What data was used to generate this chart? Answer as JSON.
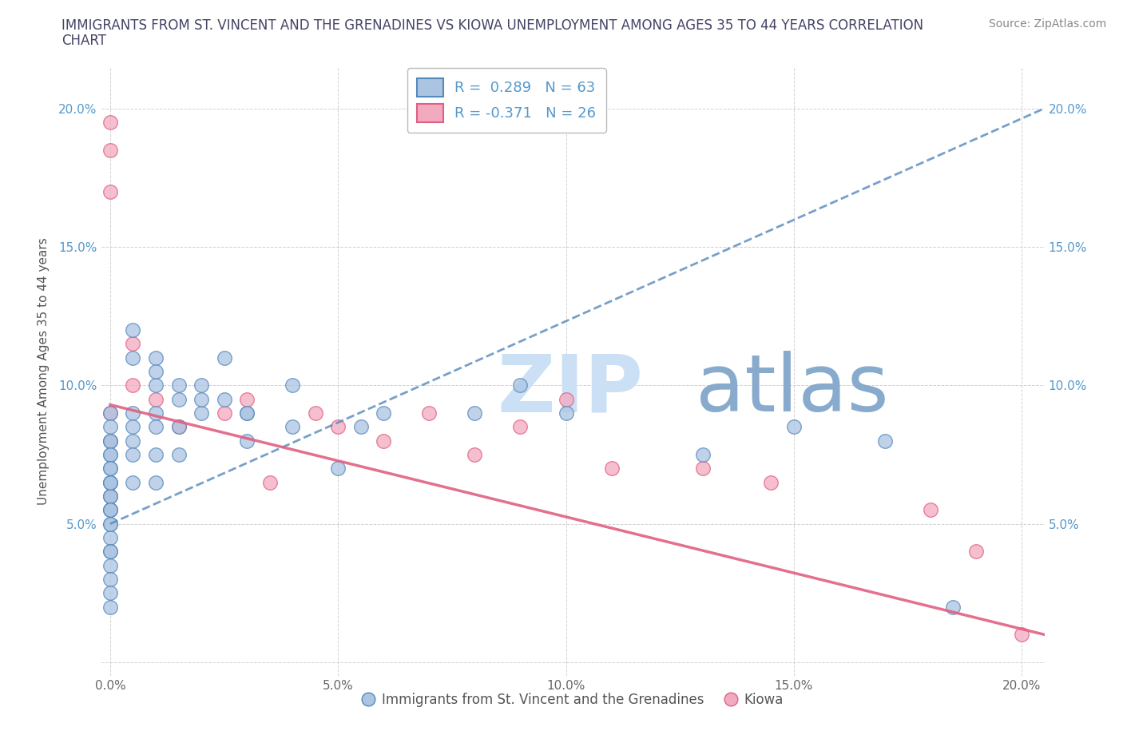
{
  "title": "IMMIGRANTS FROM ST. VINCENT AND THE GRENADINES VS KIOWA UNEMPLOYMENT AMONG AGES 35 TO 44 YEARS CORRELATION\nCHART",
  "source_text": "Source: ZipAtlas.com",
  "ylabel": "Unemployment Among Ages 35 to 44 years",
  "xlim": [
    -0.002,
    0.205
  ],
  "ylim": [
    -0.005,
    0.215
  ],
  "xticks": [
    0.0,
    0.05,
    0.1,
    0.15,
    0.2
  ],
  "yticks": [
    0.0,
    0.05,
    0.1,
    0.15,
    0.2
  ],
  "xticklabels": [
    "0.0%",
    "5.0%",
    "10.0%",
    "15.0%",
    "20.0%"
  ],
  "yticklabels": [
    "",
    "5.0%",
    "10.0%",
    "15.0%",
    "20.0%"
  ],
  "blue_color": "#aac4e2",
  "pink_color": "#f2aac0",
  "blue_line_color": "#5588bb",
  "pink_line_color": "#e06080",
  "watermark_zip": "ZIP",
  "watermark_atlas": "atlas",
  "watermark_color_zip": "#cce0f5",
  "watermark_color_atlas": "#88aacc",
  "legend_R_blue": "R =  0.289   N = 63",
  "legend_R_pink": "R = -0.371   N = 26",
  "blue_label": "Immigrants from St. Vincent and the Grenadines",
  "pink_label": "Kiowa",
  "blue_scatter_x": [
    0.0,
    0.0,
    0.0,
    0.0,
    0.0,
    0.0,
    0.0,
    0.0,
    0.0,
    0.0,
    0.0,
    0.0,
    0.0,
    0.0,
    0.0,
    0.0,
    0.0,
    0.0,
    0.0,
    0.0,
    0.0,
    0.0,
    0.0,
    0.0,
    0.0,
    0.005,
    0.005,
    0.005,
    0.005,
    0.005,
    0.01,
    0.01,
    0.01,
    0.01,
    0.01,
    0.015,
    0.015,
    0.015,
    0.02,
    0.02,
    0.025,
    0.025,
    0.03,
    0.03,
    0.04,
    0.04,
    0.05,
    0.055,
    0.06,
    0.08,
    0.09,
    0.1,
    0.13,
    0.15,
    0.17,
    0.185,
    0.005,
    0.005,
    0.01,
    0.01,
    0.015,
    0.02,
    0.03
  ],
  "blue_scatter_y": [
    0.09,
    0.085,
    0.08,
    0.075,
    0.07,
    0.065,
    0.06,
    0.055,
    0.05,
    0.045,
    0.04,
    0.035,
    0.03,
    0.025,
    0.02,
    0.065,
    0.06,
    0.055,
    0.05,
    0.04,
    0.08,
    0.075,
    0.07,
    0.065,
    0.055,
    0.09,
    0.085,
    0.08,
    0.075,
    0.065,
    0.1,
    0.09,
    0.085,
    0.075,
    0.065,
    0.095,
    0.085,
    0.075,
    0.1,
    0.09,
    0.11,
    0.095,
    0.09,
    0.08,
    0.1,
    0.085,
    0.07,
    0.085,
    0.09,
    0.09,
    0.1,
    0.09,
    0.075,
    0.085,
    0.08,
    0.02,
    0.11,
    0.12,
    0.11,
    0.105,
    0.1,
    0.095,
    0.09
  ],
  "pink_scatter_x": [
    0.0,
    0.0,
    0.0,
    0.005,
    0.005,
    0.01,
    0.015,
    0.025,
    0.03,
    0.035,
    0.045,
    0.05,
    0.06,
    0.07,
    0.08,
    0.09,
    0.1,
    0.11,
    0.13,
    0.145,
    0.18,
    0.19,
    0.2,
    0.0,
    0.0,
    0.0
  ],
  "pink_scatter_y": [
    0.195,
    0.185,
    0.17,
    0.115,
    0.1,
    0.095,
    0.085,
    0.09,
    0.095,
    0.065,
    0.09,
    0.085,
    0.08,
    0.09,
    0.075,
    0.085,
    0.095,
    0.07,
    0.07,
    0.065,
    0.055,
    0.04,
    0.01,
    0.09,
    0.08,
    0.06
  ],
  "blue_trend_x": [
    0.0,
    0.205
  ],
  "blue_trend_y_start": 0.05,
  "blue_trend_y_end": 0.2,
  "pink_trend_x": [
    0.0,
    0.205
  ],
  "pink_trend_y_start": 0.093,
  "pink_trend_y_end": 0.01
}
